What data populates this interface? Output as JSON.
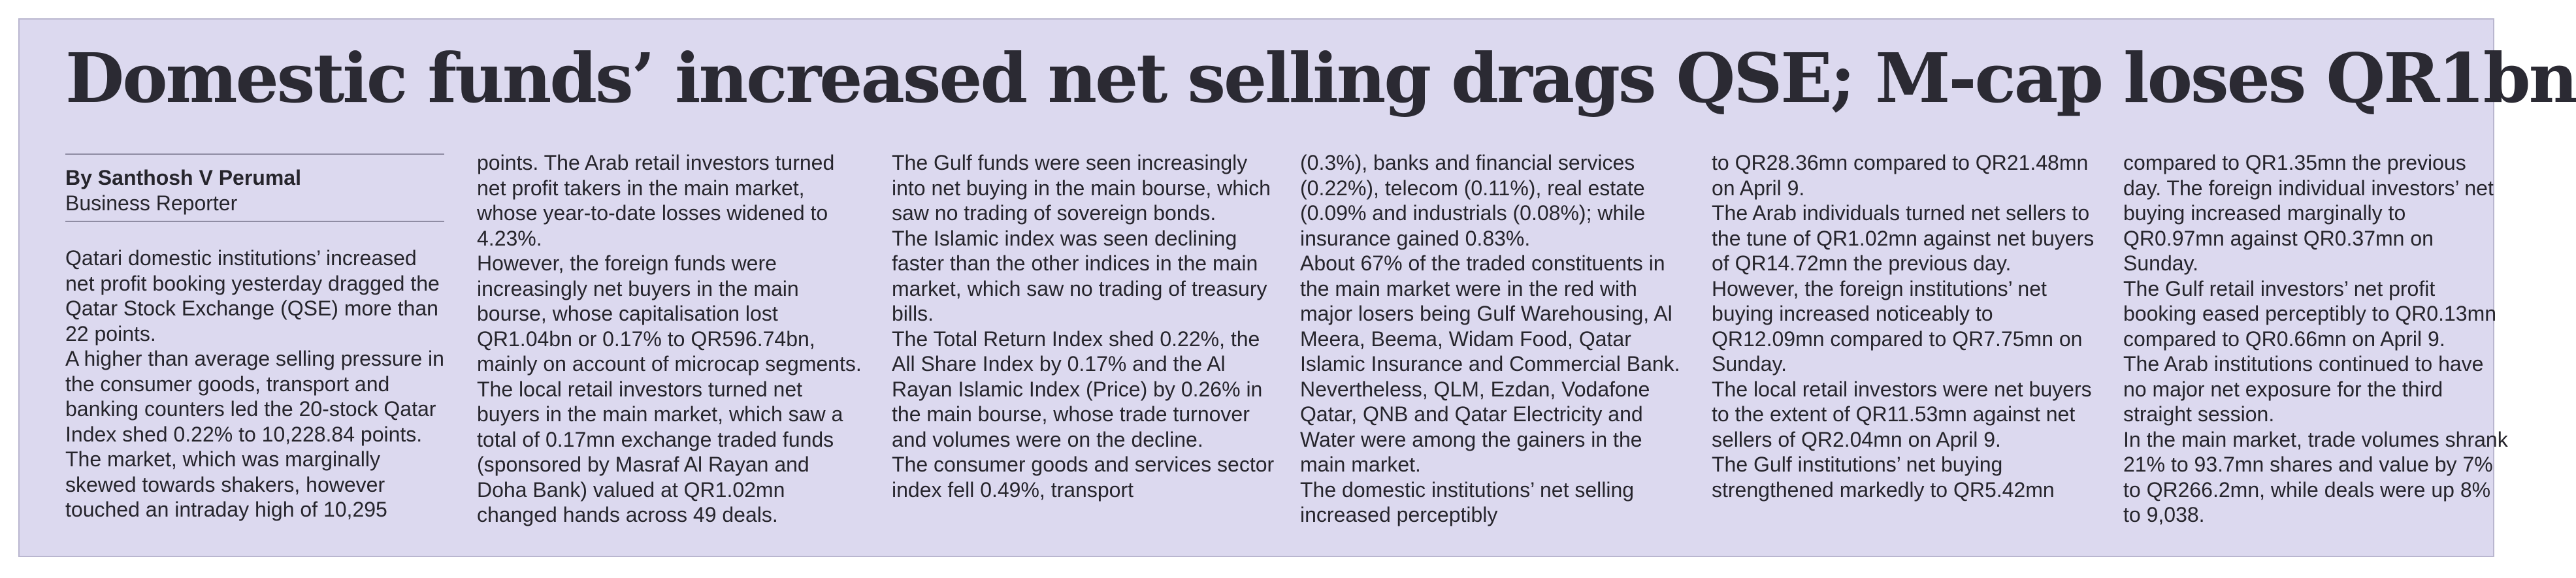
{
  "headline": "Domestic funds’ increased net selling drags QSE; M-cap loses QR1bn",
  "byline": {
    "author": "By Santhosh V Perumal",
    "role": "Business Reporter"
  },
  "columns": [
    [
      "Qatari domestic institutions’ increased net profit booking yesterday dragged the Qatar Stock Exchange (QSE) more than 22 points.",
      "A higher than average selling pressure in the consumer goods, transport and banking counters led the 20-stock Qatar Index shed 0.22% to 10,228.84 points.",
      "The market, which was marginally skewed towards shakers, however touched an intraday high of 10,295"
    ],
    [
      "points. The Arab retail investors turned net profit takers in the main market, whose year-to-date losses widened to 4.23%.",
      "However, the foreign funds were increasingly net buyers in the main bourse, whose capitalisation lost QR1.04bn or 0.17% to QR596.74bn, mainly on account of microcap segments.",
      "The local retail investors turned net buyers in the main market, which saw a total of 0.17mn exchange traded funds (sponsored by Masraf Al Rayan and Doha Bank) valued at QR1.02mn changed hands across 49 deals."
    ],
    [
      "The Gulf funds were seen increasingly into net buying in the main bourse, which saw no trading of sovereign bonds.",
      "The Islamic index was seen declining faster than the other indices in the main market, which saw no trading of treasury bills.",
      "The Total Return Index shed 0.22%, the All Share Index by 0.17% and the Al Rayan Islamic Index (Price) by 0.26% in the main bourse, whose trade turnover and volumes were on the decline.",
      "The consumer goods and services sector index fell 0.49%, transport"
    ],
    [
      "(0.3%), banks and financial services (0.22%), telecom (0.11%), real estate (0.09% and industrials (0.08%); while insurance gained 0.83%.",
      "About 67% of the traded constituents in the main market were in the red with major losers being Gulf Warehousing, Al Meera, Beema, Widam Food, Qatar Islamic Insurance and Commercial Bank.",
      "Nevertheless, QLM, Ezdan, Vodafone Qatar, QNB and Qatar Electricity and Water were among the gainers in the main market.",
      "The domestic institutions’ net selling increased perceptibly"
    ],
    [
      "to QR28.36mn compared to QR21.48mn on April 9.",
      "The Arab individuals turned net sellers to the tune of QR1.02mn against net buyers of QR14.72mn the previous day.",
      "However, the foreign institutions’ net buying increased noticeably to QR12.09mn compared to QR7.75mn on Sunday.",
      "The local retail investors were net buyers to the extent of QR11.53mn against net sellers of QR2.04mn on April 9.",
      "The Gulf institutions’ net buying strengthened markedly to QR5.42mn"
    ],
    [
      "compared to QR1.35mn the previous day. The foreign individual investors’ net buying increased marginally to QR0.97mn against QR0.37mn on Sunday.",
      "The Gulf retail investors’ net profit booking eased perceptibly to QR0.13mn compared to QR0.66mn on April 9.",
      "The Arab institutions continued to have no major net exposure for the third straight session.",
      "In the main market, trade volumes shrank 21% to 93.7mn shares and value by 7% to QR266.2mn, while deals were up 8% to 9,038."
    ]
  ]
}
